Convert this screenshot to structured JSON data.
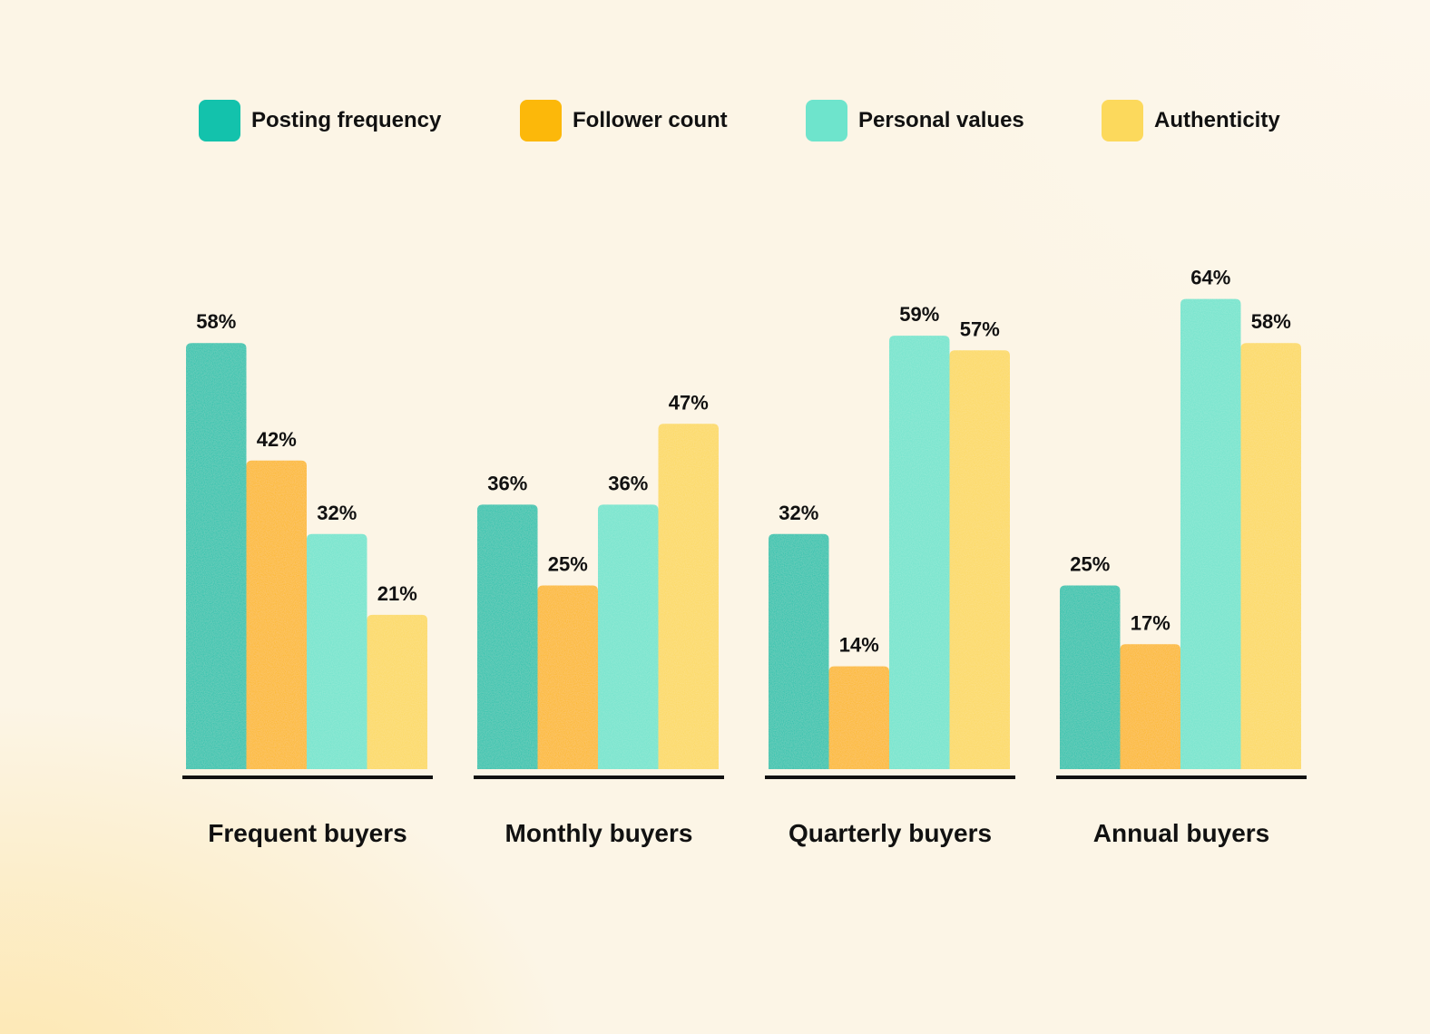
{
  "legend": {
    "items": [
      {
        "label": "Posting frequency",
        "color": "#13c2ac"
      },
      {
        "label": "Follower count",
        "color": "#fcb80a"
      },
      {
        "label": "Personal values",
        "color": "#6ee4cc"
      },
      {
        "label": "Authenticity",
        "color": "#fcd95c"
      }
    ]
  },
  "chart_data": {
    "type": "bar",
    "categories": [
      "Frequent buyers",
      "Monthly buyers",
      "Quarterly buyers",
      "Annual buyers"
    ],
    "series": [
      {
        "name": "Posting frequency",
        "color": "#13c2ac",
        "values": [
          58,
          36,
          32,
          25
        ]
      },
      {
        "name": "Follower count",
        "color": "#fcb80a",
        "values": [
          42,
          25,
          14,
          17
        ]
      },
      {
        "name": "Personal values",
        "color": "#6ee4cc",
        "values": [
          32,
          36,
          59,
          64
        ]
      },
      {
        "name": "Authenticity",
        "color": "#fcd95c",
        "values": [
          21,
          47,
          57,
          58
        ]
      }
    ],
    "value_suffix": "%",
    "ylim": [
      0,
      100
    ],
    "grid": false,
    "legend_position": "top"
  }
}
